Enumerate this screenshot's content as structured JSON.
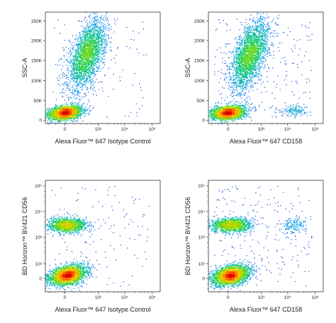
{
  "chart_data": [
    {
      "type": "scatter",
      "style": "pseudocolor density dot plot",
      "xlabel": "Alexa Fluor™ 647 Isotype Control",
      "ylabel": "SSC-A",
      "x_scale": "biexponential",
      "y_scale": "linear",
      "x_ticks": [
        "0",
        "10³",
        "10⁴",
        "10⁵"
      ],
      "y_ticks": [
        "0",
        "50K",
        "100K",
        "150K",
        "200K",
        "250K"
      ],
      "ylim": [
        0,
        262144
      ],
      "populations": [
        {
          "x_center": 0,
          "y_center": 22000,
          "density": "highest"
        },
        {
          "x_center": 300,
          "y_center": 150000,
          "density": "high"
        }
      ]
    },
    {
      "type": "scatter",
      "style": "pseudocolor density dot plot",
      "xlabel": "Alexa Fluor™ 647 CD158",
      "ylabel": "SSC-A",
      "x_scale": "biexponential",
      "y_scale": "linear",
      "x_ticks": [
        "0",
        "10³",
        "10⁴",
        "10⁵"
      ],
      "y_ticks": [
        "0",
        "50K",
        "100K",
        "150K",
        "200K",
        "250K"
      ],
      "ylim": [
        0,
        262144
      ],
      "populations": [
        {
          "x_center": 0,
          "y_center": 22000,
          "density": "highest"
        },
        {
          "x_center": 300,
          "y_center": 150000,
          "density": "high"
        },
        {
          "x_center": 30000,
          "y_center": 25000,
          "density": "low"
        }
      ]
    },
    {
      "type": "scatter",
      "style": "pseudocolor density dot plot",
      "xlabel": "Alexa Fluor™ 647 Isotype Control",
      "ylabel": "BD Horizon™ BV421 CD56",
      "x_scale": "biexponential",
      "y_scale": "biexponential",
      "x_ticks": [
        "0",
        "10³",
        "10⁴",
        "10⁵"
      ],
      "y_ticks": [
        "0",
        "10²",
        "10³",
        "10⁴",
        "10⁵"
      ],
      "populations": [
        {
          "x_center": 0,
          "y_center": 70,
          "density": "highest"
        },
        {
          "x_center": 0,
          "y_center": 3000,
          "density": "medium"
        }
      ]
    },
    {
      "type": "scatter",
      "style": "pseudocolor density dot plot",
      "xlabel": "Alexa Fluor™ 647 CD158",
      "ylabel": "BD Horizon™ BV421 CD56",
      "x_scale": "biexponential",
      "y_scale": "biexponential",
      "x_ticks": [
        "0",
        "10³",
        "10⁴",
        "10⁵"
      ],
      "y_ticks": [
        "0",
        "10²",
        "10³",
        "10⁴",
        "10⁵"
      ],
      "populations": [
        {
          "x_center": 0,
          "y_center": 70,
          "density": "highest"
        },
        {
          "x_center": 0,
          "y_center": 3000,
          "density": "medium"
        },
        {
          "x_center": 30000,
          "y_center": 3000,
          "density": "low"
        }
      ]
    }
  ]
}
